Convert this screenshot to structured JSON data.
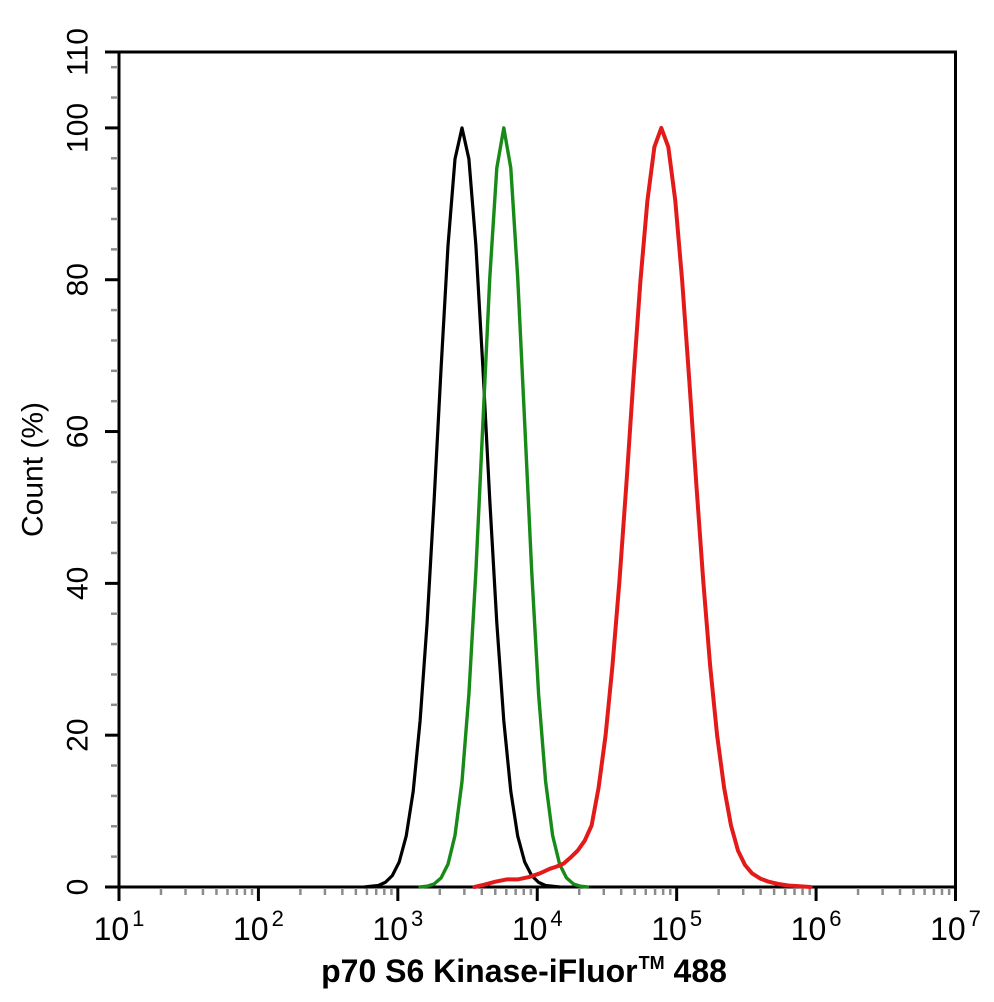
{
  "figure": {
    "background": "#ffffff",
    "x_axis_title": {
      "main": "p70 S6 Kinase-iFluor",
      "superscript": "TM",
      "suffix": " 488"
    },
    "y_axis_title": "Count (%)"
  },
  "chart_data": {
    "type": "line",
    "subtype": "flow_cytometry_histogram",
    "title": "",
    "xlabel": "p70 S6 Kinase-iFluor™ 488",
    "ylabel": "Count (%)",
    "x_scale": "log10",
    "xlim_log10": [
      1,
      7
    ],
    "ylim": [
      0,
      110
    ],
    "x_tick_base": 10,
    "x_tick_exponents": [
      1,
      2,
      3,
      4,
      5,
      6,
      7
    ],
    "x_minor_ticks_per_decade": [
      2,
      3,
      4,
      5,
      6,
      7,
      8,
      9
    ],
    "y_major_ticks": [
      0,
      20,
      40,
      60,
      80,
      100,
      110
    ],
    "y_minor_tick_step": 4,
    "grid": false,
    "legend": "none",
    "axis_color": "#000000",
    "minor_tick_color": "#8c8c8c",
    "series": [
      {
        "name": "black-curve",
        "color": "#000000",
        "stroke_width": 3.2,
        "peak_x": 2900,
        "peak_y": 100,
        "points_log10x_percent": [
          [
            2.76,
            0
          ],
          [
            2.81,
            0.1
          ],
          [
            2.86,
            0.2
          ],
          [
            2.91,
            0.6
          ],
          [
            2.96,
            1.5
          ],
          [
            3.01,
            3.3
          ],
          [
            3.06,
            6.7
          ],
          [
            3.11,
            12.6
          ],
          [
            3.16,
            21.9
          ],
          [
            3.21,
            34.8
          ],
          [
            3.26,
            50.9
          ],
          [
            3.31,
            68.4
          ],
          [
            3.36,
            84.5
          ],
          [
            3.41,
            95.9
          ],
          [
            3.46,
            100
          ],
          [
            3.51,
            95.9
          ],
          [
            3.56,
            84.5
          ],
          [
            3.61,
            68.4
          ],
          [
            3.66,
            50.9
          ],
          [
            3.71,
            34.8
          ],
          [
            3.76,
            21.9
          ],
          [
            3.81,
            12.6
          ],
          [
            3.86,
            6.7
          ],
          [
            3.91,
            3.3
          ],
          [
            3.96,
            1.5
          ],
          [
            4.01,
            0.6
          ],
          [
            4.06,
            0.2
          ],
          [
            4.11,
            0.1
          ],
          [
            4.16,
            0
          ]
        ]
      },
      {
        "name": "green-curve",
        "color": "#178a17",
        "stroke_width": 3.4,
        "peak_x": 5750,
        "peak_y": 100,
        "points_log10x_percent": [
          [
            3.16,
            0
          ],
          [
            3.21,
            0.1
          ],
          [
            3.26,
            0.4
          ],
          [
            3.31,
            1.2
          ],
          [
            3.36,
            3.0
          ],
          [
            3.41,
            6.8
          ],
          [
            3.46,
            13.9
          ],
          [
            3.51,
            25.4
          ],
          [
            3.56,
            41.6
          ],
          [
            3.61,
            61.1
          ],
          [
            3.66,
            80.3
          ],
          [
            3.71,
            94.7
          ],
          [
            3.76,
            100
          ],
          [
            3.81,
            94.7
          ],
          [
            3.86,
            80.3
          ],
          [
            3.91,
            61.1
          ],
          [
            3.96,
            41.6
          ],
          [
            4.01,
            25.4
          ],
          [
            4.06,
            13.9
          ],
          [
            4.11,
            6.8
          ],
          [
            4.16,
            3.0
          ],
          [
            4.21,
            1.2
          ],
          [
            4.26,
            0.4
          ],
          [
            4.31,
            0.1
          ],
          [
            4.36,
            0
          ]
        ]
      },
      {
        "name": "red-curve",
        "color": "#e31a1a",
        "stroke_width": 4,
        "peak_x": 77600,
        "peak_y": 100,
        "points_log10x_percent": [
          [
            3.55,
            0
          ],
          [
            3.62,
            0.3
          ],
          [
            3.7,
            0.7
          ],
          [
            3.78,
            1.0
          ],
          [
            3.86,
            1.0
          ],
          [
            3.94,
            1.3
          ],
          [
            4.02,
            1.8
          ],
          [
            4.09,
            2.4
          ],
          [
            4.14,
            2.7
          ],
          [
            4.19,
            3.1
          ],
          [
            4.24,
            3.9
          ],
          [
            4.29,
            4.8
          ],
          [
            4.34,
            6.1
          ],
          [
            4.39,
            8.1
          ],
          [
            4.44,
            13.1
          ],
          [
            4.49,
            20.0
          ],
          [
            4.54,
            29.2
          ],
          [
            4.59,
            40.4
          ],
          [
            4.64,
            53.3
          ],
          [
            4.69,
            66.9
          ],
          [
            4.74,
            79.8
          ],
          [
            4.79,
            90.4
          ],
          [
            4.84,
            97.5
          ],
          [
            4.89,
            100
          ],
          [
            4.94,
            97.5
          ],
          [
            4.99,
            90.4
          ],
          [
            5.04,
            79.8
          ],
          [
            5.09,
            66.9
          ],
          [
            5.14,
            53.3
          ],
          [
            5.19,
            40.4
          ],
          [
            5.24,
            29.2
          ],
          [
            5.29,
            20.0
          ],
          [
            5.34,
            13.1
          ],
          [
            5.39,
            8.1
          ],
          [
            5.44,
            4.8
          ],
          [
            5.49,
            2.9
          ],
          [
            5.54,
            1.8
          ],
          [
            5.6,
            1.1
          ],
          [
            5.66,
            0.7
          ],
          [
            5.73,
            0.4
          ],
          [
            5.8,
            0.2
          ],
          [
            5.88,
            0.1
          ],
          [
            5.96,
            0
          ]
        ]
      }
    ]
  }
}
